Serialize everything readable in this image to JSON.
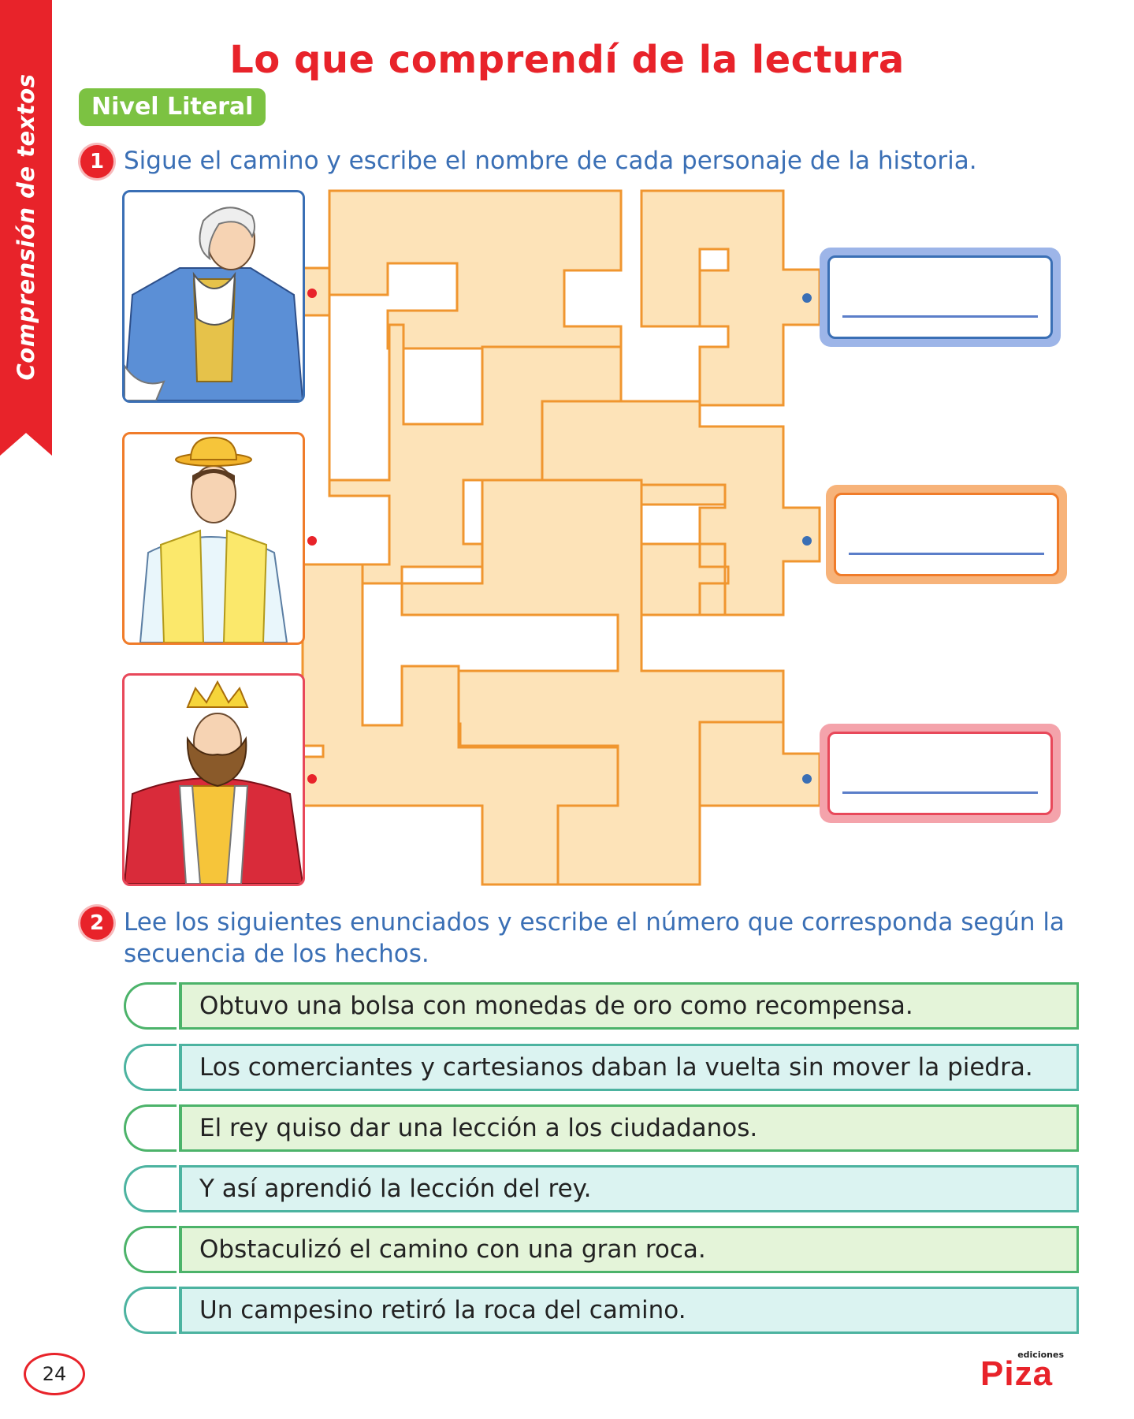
{
  "sidebar": {
    "label": "Comprensión de textos"
  },
  "title": "Lo que comprendí de la lectura",
  "level": "Nivel Literal",
  "question1": {
    "number": "1",
    "text": "Sigue el camino y escribe el nombre de cada personaje de la historia."
  },
  "question2": {
    "number": "2",
    "text": "Lee los siguientes enunciados y escribe el número que corresponda según la secuencia de los hechos."
  },
  "statements": [
    "Obtuvo una bolsa con monedas de oro como recompensa.",
    "Los comerciantes y cartesianos daban la vuelta sin mover la piedra.",
    "El rey quiso dar una lección a los ciudadanos.",
    "Y así aprendió la lección del rey.",
    "Obstaculizó el camino con una gran roca.",
    "Un campesino retiró la roca del camino."
  ],
  "footer": {
    "page_number": "24",
    "brand_small": "ediciones",
    "brand_name": "Piza"
  },
  "colors": {
    "accent_red": "#e8232a",
    "badge_green": "#7cc242",
    "question_blue": "#3a6fb5",
    "maze_fill": "#fde3b8",
    "maze_stroke": "#f0962f",
    "row_green": "#e4f4d9",
    "row_teal": "#dbf3f1"
  },
  "icons": [
    "character-gentleman-icon",
    "character-peasant-icon",
    "character-king-icon"
  ]
}
